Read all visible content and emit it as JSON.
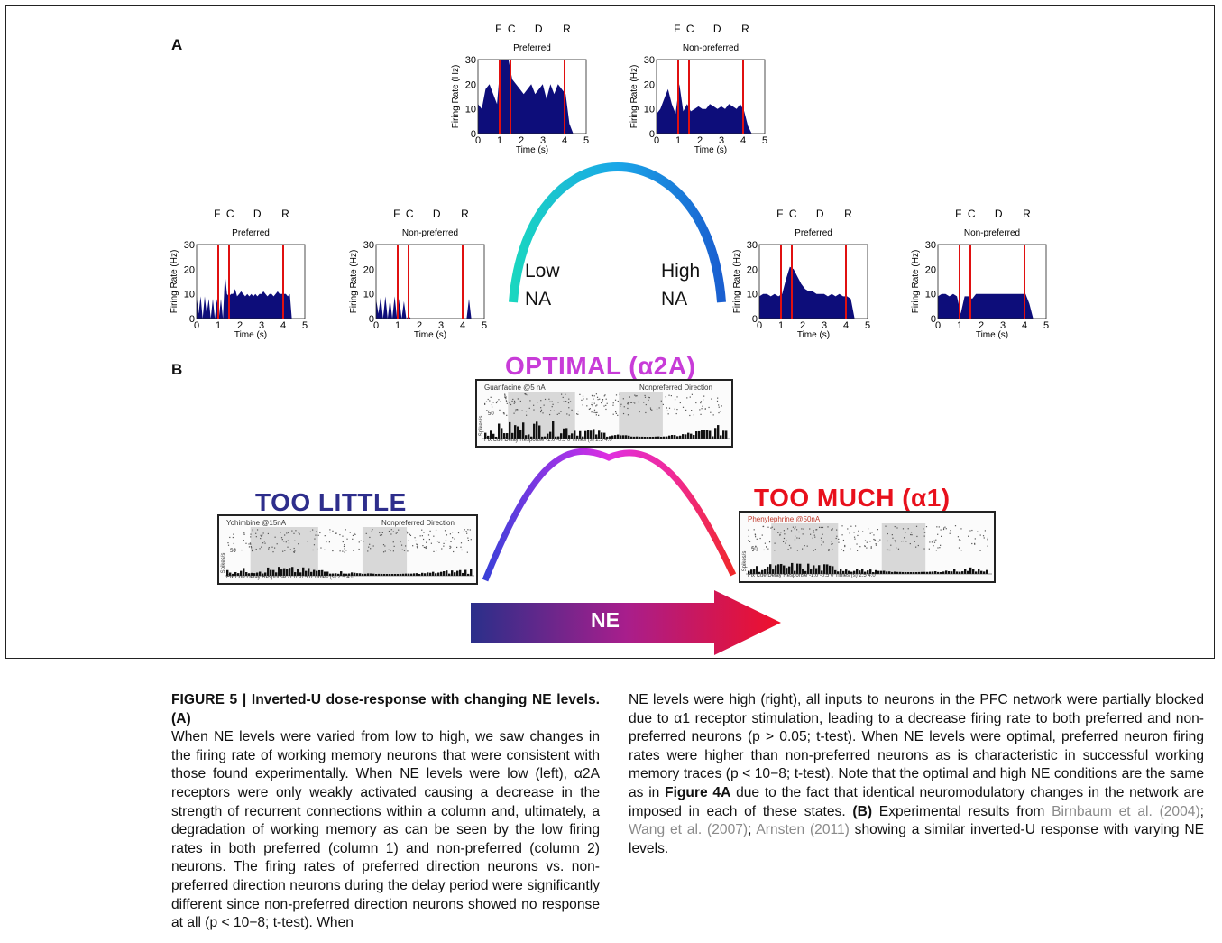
{
  "panel_labels": {
    "a": "A",
    "b": "B"
  },
  "epochs": [
    "F",
    "C",
    "D",
    "R"
  ],
  "axes": {
    "ylabel": "Firing Rate (Hz)",
    "xlabel": "Time (s)",
    "yticks": [
      "0",
      "10",
      "20",
      "30"
    ],
    "xticks": [
      "0",
      "1",
      "2",
      "3",
      "4",
      "5"
    ]
  },
  "plots": [
    {
      "title": "Preferred",
      "series": [
        12,
        10,
        18,
        20,
        16,
        12,
        35,
        35,
        30,
        22,
        20,
        18,
        16,
        18,
        20,
        16,
        18,
        20,
        14,
        20,
        16,
        20,
        18,
        16,
        4,
        0
      ]
    },
    {
      "title": "Non-preferred",
      "series": [
        8,
        10,
        14,
        18,
        12,
        8,
        20,
        9,
        12,
        9,
        10,
        11,
        10,
        10,
        12,
        11,
        10,
        11,
        10,
        12,
        11,
        10,
        12,
        9,
        3,
        0
      ]
    },
    {
      "title": "Preferred",
      "series": [
        9,
        2,
        9,
        0,
        9,
        2,
        8,
        0,
        8,
        0,
        8,
        0,
        8,
        0,
        18,
        10,
        9,
        10,
        10,
        12,
        9,
        10,
        11,
        10,
        9,
        10,
        9,
        10,
        9,
        10,
        9,
        10,
        10,
        11,
        10,
        9,
        10,
        10,
        9,
        10,
        11,
        10,
        10,
        10,
        10,
        9,
        10,
        0
      ]
    },
    {
      "title": "Non-preferred",
      "series": [
        8,
        2,
        9,
        0,
        9,
        0,
        8,
        0,
        9,
        0,
        8,
        0,
        7,
        0,
        1,
        0,
        0,
        0,
        0,
        0,
        0,
        0,
        0,
        0,
        0,
        0,
        0,
        0,
        0,
        0,
        0,
        0,
        0,
        0,
        0,
        0,
        0,
        0,
        0,
        0,
        8,
        0
      ]
    },
    {
      "title": "Preferred",
      "series": [
        9,
        10,
        10,
        9,
        10,
        9,
        10,
        16,
        21,
        20,
        17,
        14,
        12,
        11,
        11,
        10,
        10,
        10,
        9,
        10,
        9,
        10,
        9,
        9,
        8,
        0
      ]
    },
    {
      "title": "Non-preferred",
      "series": [
        9,
        10,
        10,
        9,
        10,
        9,
        2,
        9,
        9,
        8,
        10,
        10,
        10,
        10,
        10,
        10,
        10,
        10,
        10,
        10,
        10,
        10,
        10,
        10,
        6,
        0
      ]
    }
  ],
  "curve_labels": {
    "low": [
      "Low",
      "NA"
    ],
    "high": [
      "High",
      "NA"
    ]
  },
  "panel_b": {
    "optimal": "OPTIMAL (α2A)",
    "too_little": "TOO LITTLE",
    "too_much": "TOO MUCH (α1)",
    "arrow": "NE",
    "thumbs": {
      "optimal": {
        "left": "Guanfacine @5 nA",
        "right": "Nonpreferred Direction",
        "axis": "Fix  Cue        Delay          Response  -1.0 -0.5  0     Times (s)     2.5        4.0"
      },
      "little": {
        "left": "Yohimbine @15nA",
        "right": "Nonpreferred Direction",
        "axis": "Fix  Cue        Delay          Response  -1.0 -0.5  0     Times (s)     2.5        4.0"
      },
      "much": {
        "left": "Phenylephrine @50nA",
        "right": "",
        "axis": "Fix  Cue        Delay          Response  -1.0 -0.5  0     Times (s)     2.5        4.0"
      }
    },
    "thumb_ylabel": "Spikes/s",
    "thumb_ytick": "50"
  },
  "caption": {
    "heading": "FIGURE 5 | Inverted-U dose-response with changing NE levels. (A)",
    "col1": "When NE levels were varied from low to high, we saw changes in the firing rate of working memory neurons that were consistent with those found experimentally. When NE levels were low (left), α2A receptors were only weakly activated causing a decrease in the strength of recurrent connections within a column and, ultimately, a degradation of working memory as can be seen by the low firing rates in both preferred (column 1) and non-preferred (column 2) neurons. The firing rates of preferred direction neurons vs. non-preferred direction neurons during the delay period were significantly different since non-preferred direction neurons showed no response at all (p < 10−8;  t-test). When",
    "col2_a": "NE levels were high (right), all inputs to neurons in the PFC network were partially blocked due to α1 receptor stimulation, leading to a decrease firing rate to both preferred and non-preferred neurons (p > 0.05;  t-test). When NE levels were optimal, preferred neuron firing rates were higher than non-preferred neurons as is characteristic in successful working memory traces (p < 10−8;  t-test). Note that the optimal and high NE conditions are the same as in ",
    "col2_fig": "Figure 4A",
    "col2_b": " due to the fact that identical neuromodulatory changes in the network are imposed in each of these states. ",
    "col2_bhead": "(B)",
    "col2_c": " Experimental results from ",
    "ref1": "Birnbaum et al. (2004)",
    "sep1": "; ",
    "ref2": "Wang et al. (2007)",
    "sep2": "; ",
    "ref3": "Arnsten (2011)",
    "col2_d": " showing a similar inverted-U response with varying NE levels."
  },
  "colors": {
    "fill": "#0d0d7a",
    "marker": "#e01010",
    "ne_start": "#2a2f8a",
    "ne_end": "#f0102a",
    "optimal": "#c83cd8",
    "too_little": "#2e2e8c",
    "too_much": "#e8101c"
  }
}
